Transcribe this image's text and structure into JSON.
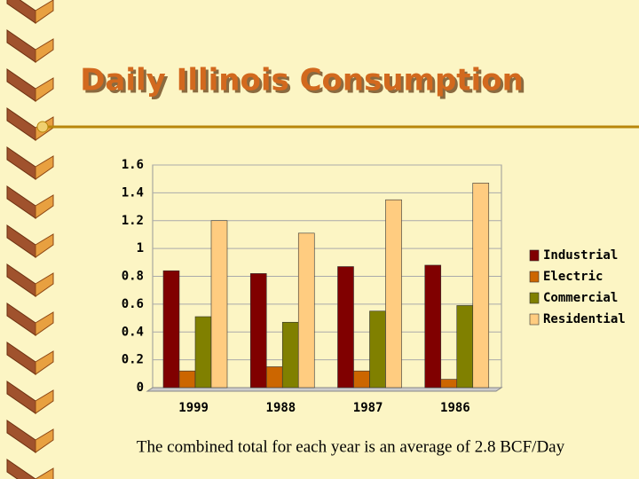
{
  "chart_data": {
    "type": "bar",
    "title": "Daily Illinois Consumption",
    "categories": [
      "1999",
      "1988",
      "1987",
      "1986"
    ],
    "series": [
      {
        "name": "Industrial",
        "color": "#800000",
        "values": [
          0.84,
          0.82,
          0.87,
          0.88
        ]
      },
      {
        "name": "Electric",
        "color": "#cc6600",
        "values": [
          0.12,
          0.15,
          0.12,
          0.06
        ]
      },
      {
        "name": "Commercial",
        "color": "#808000",
        "values": [
          0.51,
          0.47,
          0.55,
          0.59
        ]
      },
      {
        "name": "Residential",
        "color": "#ffcc80",
        "values": [
          1.2,
          1.11,
          1.35,
          1.47
        ]
      }
    ],
    "ylim": [
      0,
      1.6
    ],
    "yticks": [
      0,
      0.2,
      0.4,
      0.6,
      0.8,
      1,
      1.2,
      1.4,
      1.6
    ],
    "grid": true,
    "legend": "right",
    "annotation": "The combined total for each year is an average of 2.8 BCF/Day"
  }
}
